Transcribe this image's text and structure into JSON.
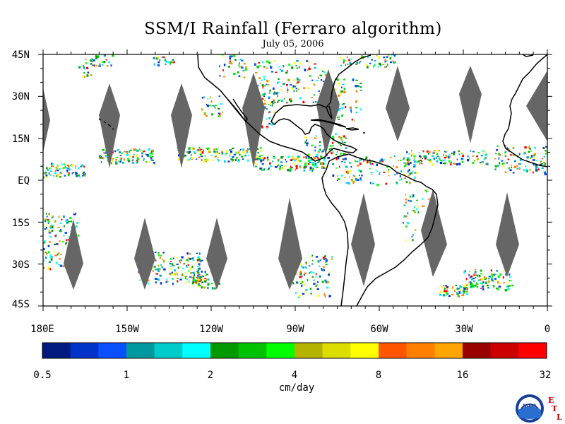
{
  "title": "SSM/I Rainfall (Ferraro algorithm)",
  "date": "July 05, 2006",
  "lat_labels": [
    "45N",
    "30N",
    "15N",
    "EQ",
    "15S",
    "30S",
    "45S"
  ],
  "lon_labels": [
    "180E",
    "150W",
    "120W",
    "90W",
    "60W",
    "30W",
    "0"
  ],
  "colorbar": {
    "tick_labels": [
      "0.5",
      "1",
      "2",
      "4",
      "8",
      "16",
      "32"
    ],
    "unit": "cm/day",
    "colors": [
      "#001a80",
      "#0033c8",
      "#0a50ff",
      "#00999f",
      "#00cccc",
      "#00ffff",
      "#009900",
      "#00c200",
      "#00ff00",
      "#b3b300",
      "#dddd00",
      "#ffff00",
      "#ff5500",
      "#ff8000",
      "#ffa500",
      "#990000",
      "#cc0000",
      "#ff0000"
    ]
  },
  "logo": {
    "emblem": "NOAA",
    "etl_letters": [
      "E",
      "T",
      "L"
    ]
  },
  "colors": {
    "swath_gap": "#666666",
    "coastline": "#000000",
    "etl": "#cc0000"
  }
}
